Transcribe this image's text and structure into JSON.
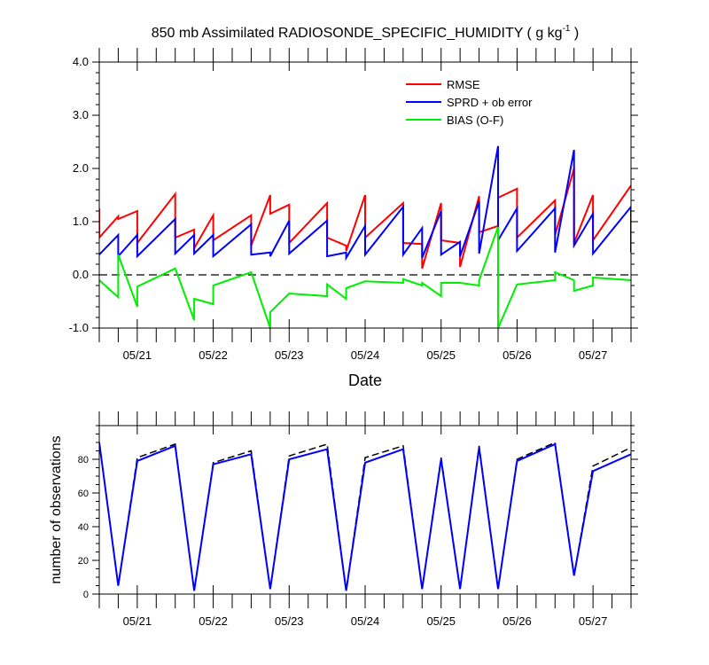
{
  "chart_data": [
    {
      "type": "line",
      "title": "850 mb Assimilated RADIOSONDE_SPECIFIC_HUMIDITY ( g kg",
      "title_superscript": "-1",
      "title_suffix": " )",
      "xlabel": "Date",
      "ylabel": "",
      "x_unit": "days since 05/20 00Z",
      "xlim": [
        0.5,
        7.5
      ],
      "ylim": [
        -1.0,
        4.0
      ],
      "y_ticks": [
        -1.0,
        0.0,
        1.0,
        2.0,
        3.0,
        4.0
      ],
      "y_tick_labels": [
        "-1.0",
        "0.0",
        "1.0",
        "2.0",
        "3.0",
        "4.0"
      ],
      "x_ticks": [
        1,
        2,
        3,
        4,
        5,
        6,
        7
      ],
      "x_tick_labels": [
        "05/21",
        "05/22",
        "05/23",
        "05/24",
        "05/25",
        "05/26",
        "05/27"
      ],
      "legend_position": "top-right",
      "zero_line": "dashed",
      "series": [
        {
          "name": "RMSE",
          "color": "#ff0000",
          "points": [
            [
              0.5,
              1.25
            ],
            [
              0.5,
              0.7
            ],
            [
              0.75,
              1.1
            ],
            [
              0.75,
              1.05
            ],
            [
              1.0,
              1.2
            ],
            [
              1.0,
              0.6
            ],
            [
              1.5,
              1.52
            ],
            [
              1.5,
              0.7
            ],
            [
              1.75,
              0.85
            ],
            [
              1.75,
              0.5
            ],
            [
              2.0,
              1.12
            ],
            [
              2.0,
              0.65
            ],
            [
              2.5,
              1.12
            ],
            [
              2.5,
              0.55
            ],
            [
              2.75,
              1.5
            ],
            [
              2.75,
              1.15
            ],
            [
              3.0,
              1.32
            ],
            [
              3.0,
              0.6
            ],
            [
              3.5,
              1.35
            ],
            [
              3.5,
              0.7
            ],
            [
              3.75,
              0.55
            ],
            [
              3.75,
              0.45
            ],
            [
              4.0,
              1.5
            ],
            [
              4.0,
              0.7
            ],
            [
              4.5,
              1.35
            ],
            [
              4.5,
              0.6
            ],
            [
              4.75,
              0.58
            ],
            [
              4.75,
              0.12
            ],
            [
              5.0,
              1.35
            ],
            [
              5.0,
              0.65
            ],
            [
              5.25,
              0.6
            ],
            [
              5.25,
              0.15
            ],
            [
              5.5,
              1.48
            ],
            [
              5.5,
              0.8
            ],
            [
              5.75,
              0.92
            ],
            [
              5.75,
              1.45
            ],
            [
              6.0,
              1.62
            ],
            [
              6.0,
              0.7
            ],
            [
              6.5,
              1.4
            ],
            [
              6.5,
              0.75
            ],
            [
              6.75,
              2.0
            ],
            [
              6.75,
              0.6
            ],
            [
              7.0,
              1.5
            ],
            [
              7.0,
              0.65
            ],
            [
              7.5,
              1.68
            ]
          ]
        },
        {
          "name": "SPRD + ob error",
          "color": "#0000ff",
          "points": [
            [
              0.5,
              0.38
            ],
            [
              0.75,
              0.75
            ],
            [
              0.75,
              0.35
            ],
            [
              1.0,
              0.75
            ],
            [
              1.0,
              0.35
            ],
            [
              1.5,
              1.05
            ],
            [
              1.5,
              0.4
            ],
            [
              1.75,
              0.75
            ],
            [
              1.75,
              0.4
            ],
            [
              2.0,
              0.75
            ],
            [
              2.0,
              0.35
            ],
            [
              2.5,
              0.95
            ],
            [
              2.5,
              0.38
            ],
            [
              2.75,
              0.42
            ],
            [
              2.75,
              0.35
            ],
            [
              3.0,
              1.02
            ],
            [
              3.0,
              0.4
            ],
            [
              3.5,
              1.02
            ],
            [
              3.5,
              0.35
            ],
            [
              3.75,
              0.42
            ],
            [
              3.75,
              0.32
            ],
            [
              4.0,
              0.92
            ],
            [
              4.0,
              0.38
            ],
            [
              4.5,
              1.28
            ],
            [
              4.5,
              0.38
            ],
            [
              4.75,
              0.88
            ],
            [
              4.75,
              0.32
            ],
            [
              5.0,
              1.2
            ],
            [
              5.0,
              0.38
            ],
            [
              5.25,
              0.62
            ],
            [
              5.25,
              0.35
            ],
            [
              5.5,
              1.38
            ],
            [
              5.5,
              0.4
            ],
            [
              5.75,
              2.42
            ],
            [
              5.75,
              0.65
            ],
            [
              6.0,
              1.25
            ],
            [
              6.0,
              0.45
            ],
            [
              6.5,
              1.25
            ],
            [
              6.5,
              0.42
            ],
            [
              6.75,
              2.35
            ],
            [
              6.75,
              0.55
            ],
            [
              7.0,
              1.15
            ],
            [
              7.0,
              0.4
            ],
            [
              7.5,
              1.28
            ],
            [
              7.5,
              0.42
            ]
          ]
        },
        {
          "name": "BIAS (O-F)",
          "color": "#00ee00",
          "points": [
            [
              0.5,
              -0.1
            ],
            [
              0.75,
              -0.42
            ],
            [
              0.75,
              0.38
            ],
            [
              1.0,
              -0.6
            ],
            [
              1.0,
              -0.22
            ],
            [
              1.5,
              0.12
            ],
            [
              1.75,
              -0.85
            ],
            [
              1.75,
              -0.45
            ],
            [
              2.0,
              -0.55
            ],
            [
              2.0,
              -0.2
            ],
            [
              2.5,
              0.05
            ],
            [
              2.5,
              0.05
            ],
            [
              2.75,
              -1.0
            ],
            [
              2.75,
              -0.7
            ],
            [
              3.0,
              -0.35
            ],
            [
              3.5,
              -0.4
            ],
            [
              3.5,
              -0.18
            ],
            [
              3.75,
              -0.45
            ],
            [
              3.75,
              -0.25
            ],
            [
              4.0,
              -0.12
            ],
            [
              4.5,
              -0.15
            ],
            [
              4.5,
              -0.08
            ],
            [
              4.75,
              -0.2
            ],
            [
              4.75,
              -0.15
            ],
            [
              5.0,
              -0.4
            ],
            [
              5.0,
              -0.15
            ],
            [
              5.25,
              -0.15
            ],
            [
              5.5,
              -0.2
            ],
            [
              5.5,
              -0.1
            ],
            [
              5.75,
              0.9
            ],
            [
              5.75,
              -1.0
            ],
            [
              6.0,
              -0.18
            ],
            [
              6.5,
              -0.1
            ],
            [
              6.5,
              0.05
            ],
            [
              6.75,
              -0.1
            ],
            [
              6.75,
              -0.3
            ],
            [
              7.0,
              -0.2
            ],
            [
              7.0,
              -0.05
            ],
            [
              7.5,
              -0.1
            ]
          ]
        }
      ]
    },
    {
      "type": "line",
      "title": "",
      "xlabel": "",
      "ylabel": "number of observations",
      "x_unit": "days since 05/20 00Z",
      "xlim": [
        0.5,
        7.5
      ],
      "ylim": [
        0,
        100
      ],
      "y_ticks": [
        0,
        20,
        40,
        60,
        80
      ],
      "y_tick_labels": [
        "0",
        "20",
        "40",
        "60",
        "80"
      ],
      "x_ticks": [
        1,
        2,
        3,
        4,
        5,
        6,
        7
      ],
      "x_tick_labels": [
        "05/21",
        "05/22",
        "05/23",
        "05/24",
        "05/25",
        "05/26",
        "05/27"
      ],
      "series": [
        {
          "style": "dashed",
          "color": "#000000",
          "points": [
            [
              0.5,
              90
            ],
            [
              0.75,
              5
            ],
            [
              1.0,
              81
            ],
            [
              1.5,
              89
            ],
            [
              1.75,
              2
            ],
            [
              2.0,
              78
            ],
            [
              2.5,
              85
            ],
            [
              2.75,
              3
            ],
            [
              3.0,
              82
            ],
            [
              3.5,
              89
            ],
            [
              3.75,
              2
            ],
            [
              4.0,
              81
            ],
            [
              4.5,
              88
            ],
            [
              4.75,
              3
            ],
            [
              5.0,
              81
            ],
            [
              5.25,
              3
            ],
            [
              5.5,
              88
            ],
            [
              5.75,
              3
            ],
            [
              6.0,
              80
            ],
            [
              6.5,
              90
            ],
            [
              6.75,
              11
            ],
            [
              7.0,
              76
            ],
            [
              7.5,
              87
            ]
          ]
        },
        {
          "style": "solid",
          "color": "#0000ff",
          "points": [
            [
              0.5,
              90
            ],
            [
              0.75,
              5
            ],
            [
              1.0,
              79
            ],
            [
              1.5,
              88
            ],
            [
              1.75,
              2
            ],
            [
              2.0,
              77
            ],
            [
              2.5,
              83
            ],
            [
              2.75,
              3
            ],
            [
              3.0,
              80
            ],
            [
              3.5,
              86
            ],
            [
              3.75,
              2
            ],
            [
              4.0,
              78
            ],
            [
              4.5,
              86
            ],
            [
              4.75,
              3
            ],
            [
              5.0,
              80
            ],
            [
              5.25,
              3
            ],
            [
              5.5,
              87
            ],
            [
              5.75,
              3
            ],
            [
              6.0,
              79
            ],
            [
              6.5,
              89
            ],
            [
              6.75,
              11
            ],
            [
              7.0,
              73
            ],
            [
              7.5,
              83
            ]
          ]
        }
      ]
    }
  ]
}
